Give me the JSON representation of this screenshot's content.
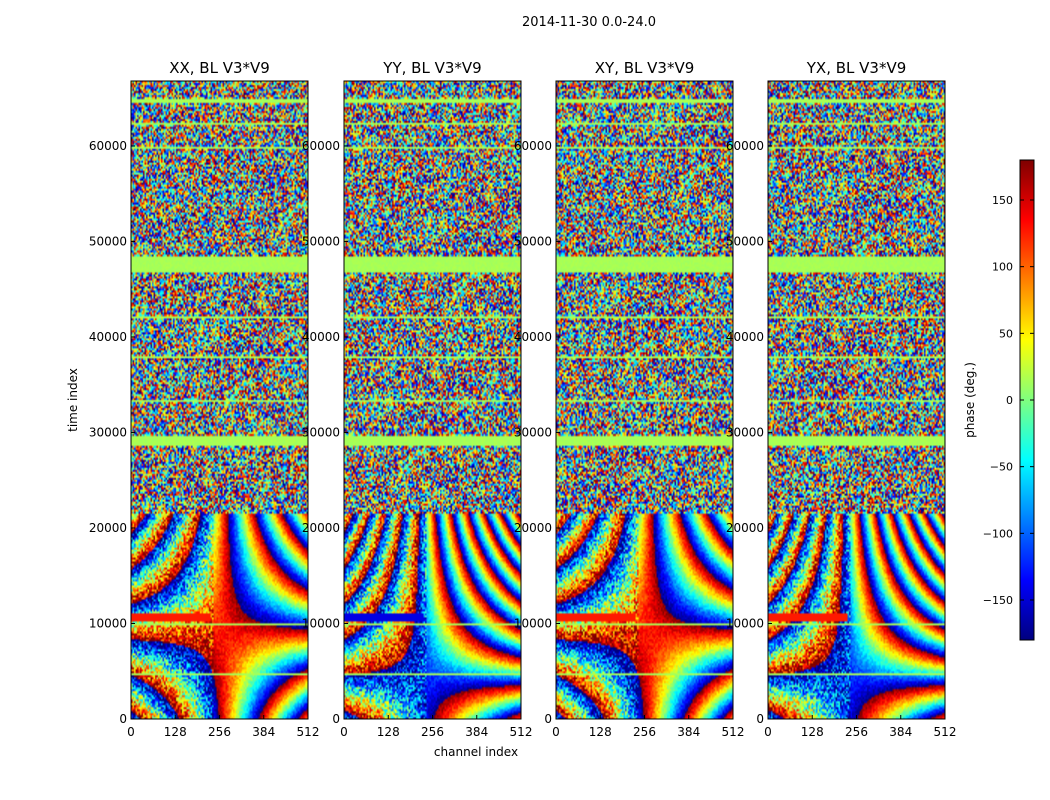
{
  "figure": {
    "suptitle": "2014-11-30 0.0-24.0"
  },
  "chart_data": {
    "type": "heatmap",
    "panels": [
      {
        "title": "XX, BL V3*V9"
      },
      {
        "title": "YY, BL V3*V9"
      },
      {
        "title": "XY, BL V3*V9"
      },
      {
        "title": "YX, BL V3*V9"
      }
    ],
    "xlabel": "channel index",
    "ylabel": "time index",
    "xlim": [
      0,
      512
    ],
    "ylim": [
      0,
      66800
    ],
    "xticks": [
      0,
      128,
      256,
      384,
      512
    ],
    "yticks": [
      0,
      10000,
      20000,
      30000,
      40000,
      50000,
      60000
    ],
    "colorbar": {
      "label": "phase (deg.)",
      "range": [
        -180,
        180
      ],
      "ticks": [
        -150,
        -100,
        -50,
        0,
        50,
        100,
        150
      ],
      "tick_labels": [
        "−150",
        "−100",
        "−50",
        "0",
        "50",
        "100",
        "150"
      ],
      "colormap": "jet",
      "stops": [
        "#00007f",
        "#0000ff",
        "#007fff",
        "#00ffff",
        "#7fff7f",
        "#ffff00",
        "#ff7f00",
        "#ff0000",
        "#7f0000"
      ]
    },
    "flagged_time_bands": [
      [
        4500,
        4900
      ],
      [
        9800,
        10100
      ],
      [
        28700,
        29600
      ],
      [
        33200,
        33500
      ],
      [
        37700,
        38000
      ],
      [
        41900,
        42200
      ],
      [
        46700,
        48500
      ],
      [
        59700,
        60000
      ],
      [
        62200,
        62500
      ],
      [
        64500,
        64900
      ]
    ],
    "noise_above_time": 21500,
    "fringe_below_time": 21500
  }
}
